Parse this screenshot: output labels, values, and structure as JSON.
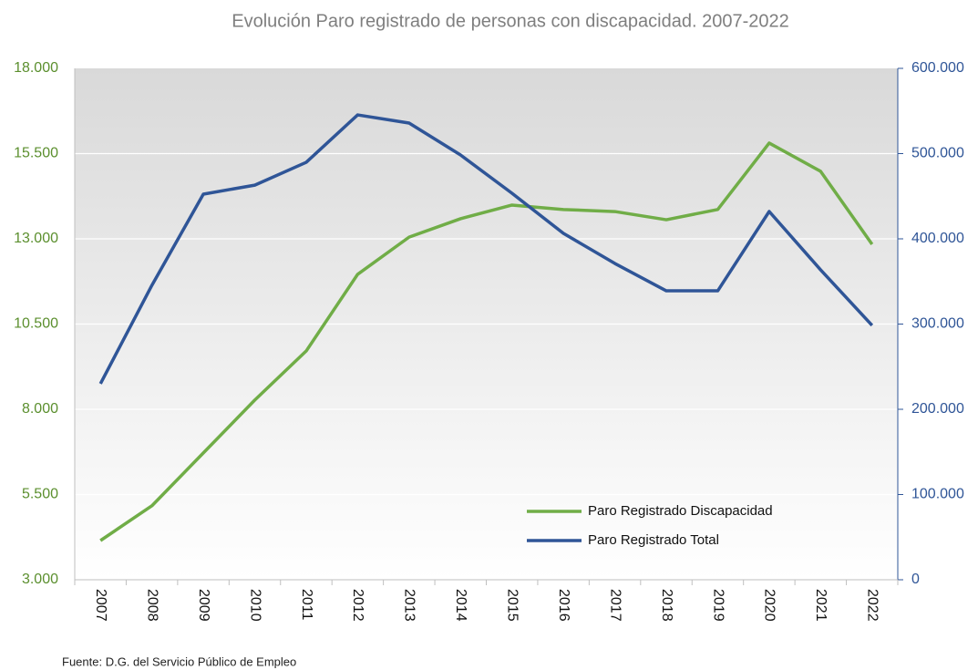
{
  "chart_data": {
    "type": "line",
    "title": "Evolución Paro registrado de personas con discapacidad. 2007-2022",
    "categories": [
      "2007",
      "2008",
      "2009",
      "2010",
      "2011",
      "2012",
      "2013",
      "2014",
      "2015",
      "2016",
      "2017",
      "2018",
      "2019",
      "2020",
      "2021",
      "2022"
    ],
    "series": [
      {
        "name": "Paro Registrado Discapacidad",
        "color": "#70ad47",
        "axis": "y",
        "values": [
          4150,
          5170,
          6720,
          8270,
          9710,
          11960,
          13050,
          13590,
          13990,
          13860,
          13800,
          13560,
          13860,
          15810,
          14980,
          12840
        ]
      },
      {
        "name": "Paro Registrado Total",
        "color": "#2f5597",
        "axis": "y2",
        "values": [
          230000,
          345500,
          452400,
          463000,
          489800,
          545400,
          535800,
          498400,
          453500,
          406400,
          371100,
          339000,
          339000,
          432100,
          363600,
          298400
        ]
      }
    ],
    "ylim": [
      3000,
      18000
    ],
    "yticks": [
      {
        "value": 3000,
        "label": "3.000"
      },
      {
        "value": 5500,
        "label": "5.500"
      },
      {
        "value": 8000,
        "label": "8.000"
      },
      {
        "value": 10500,
        "label": "10.500"
      },
      {
        "value": 13000,
        "label": "13.000"
      },
      {
        "value": 15500,
        "label": "15.500"
      },
      {
        "value": 18000,
        "label": "18.000"
      }
    ],
    "y2lim": [
      0,
      600000
    ],
    "y2ticks": [
      0,
      {
        "value": 100000,
        "label": "100.000"
      },
      {
        "value": 200000,
        "label": "200.000"
      },
      {
        "value": 300000,
        "label": "300.000"
      },
      {
        "value": 400000,
        "label": "400.000"
      },
      {
        "value": 500000,
        "label": "500.000"
      },
      {
        "value": 600000,
        "label": "600.000"
      }
    ],
    "grid": true,
    "legend": "lower right",
    "source": "Fuente: D.G. del Servicio Público de Empleo"
  }
}
